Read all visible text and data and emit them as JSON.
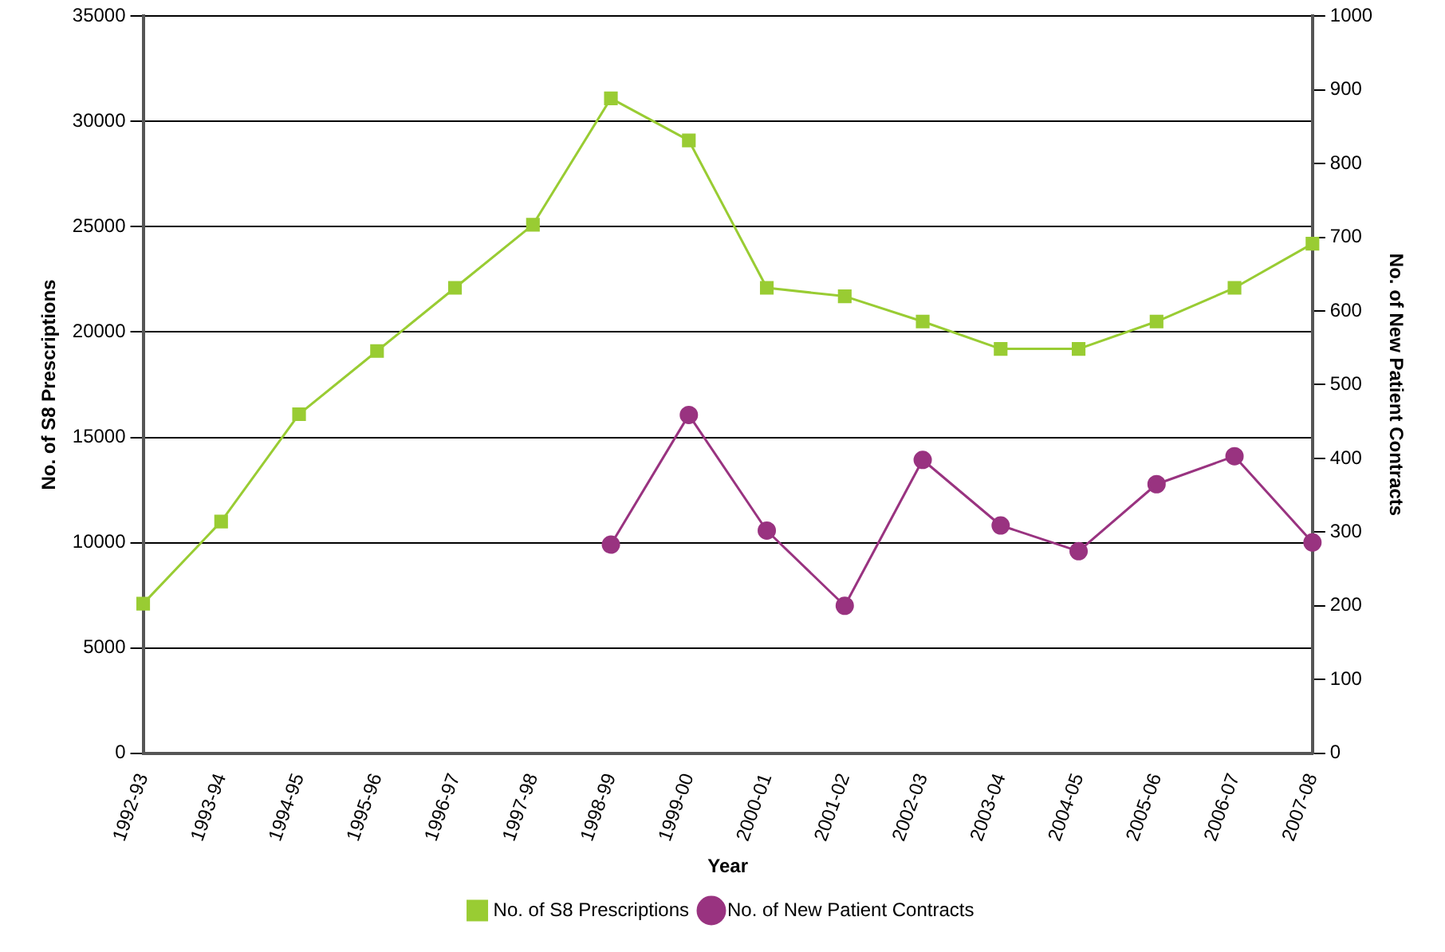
{
  "chart_data": {
    "type": "line",
    "xlabel": "Year",
    "ylabel": "No. of S8 Prescriptions",
    "y2label": "No. of New Patient Contracts",
    "categories": [
      "1992-93",
      "1993-94",
      "1994-95",
      "1995-96",
      "1996-97",
      "1997-98",
      "1998-99",
      "1999-00",
      "2000-01",
      "2001-02",
      "2002-03",
      "2003-04",
      "2004-05",
      "2005-06",
      "2006-07",
      "2007-08"
    ],
    "series": [
      {
        "name": "No. of S8 Prescriptions",
        "color": "#99cc33",
        "marker": "square",
        "values": [
          7100,
          11000,
          16100,
          19100,
          22100,
          25100,
          31100,
          29100,
          22100,
          21700,
          20500,
          19200,
          19200,
          20500,
          22100,
          24200
        ]
      },
      {
        "name": "No. of New Patient Contracts",
        "color": "#993380",
        "marker": "circle",
        "axis": "y2",
        "values": [
          null,
          null,
          null,
          null,
          null,
          null,
          283,
          459,
          302,
          200,
          398,
          309,
          274,
          365,
          403,
          286
        ]
      }
    ],
    "ylim": [
      0,
      35000
    ],
    "yticks": [
      0,
      5000,
      10000,
      15000,
      20000,
      25000,
      30000,
      35000
    ],
    "y2lim": [
      0,
      1000
    ],
    "y2ticks": [
      0,
      100,
      200,
      300,
      400,
      500,
      600,
      700,
      800,
      900,
      1000
    ],
    "grid": "y",
    "legend": "bottom"
  }
}
